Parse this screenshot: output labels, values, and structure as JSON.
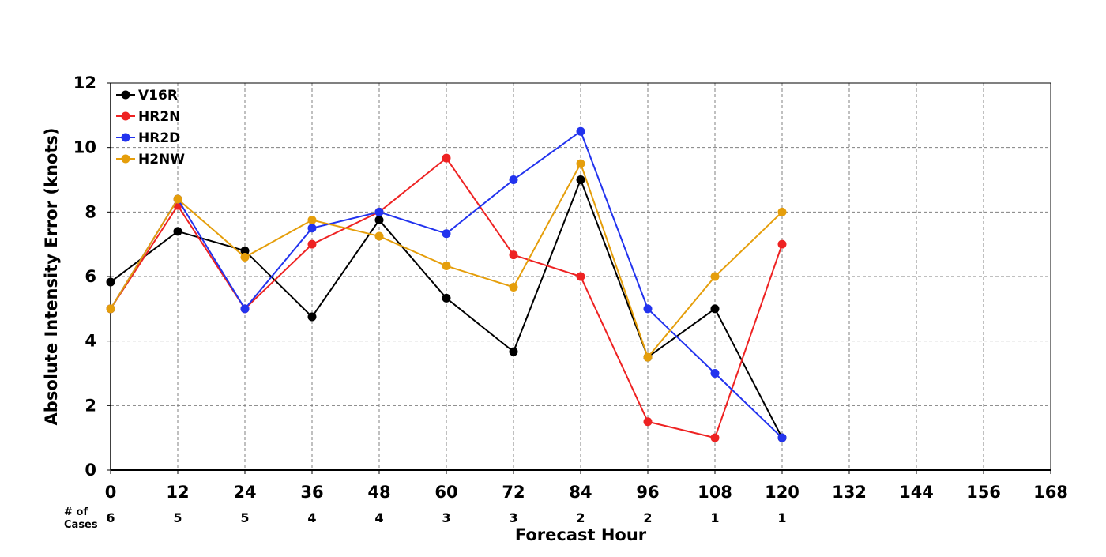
{
  "chart_data": {
    "type": "line",
    "title": "",
    "xlabel": "Forecast Hour",
    "ylabel": "Absolute Intensity Error (knots)",
    "xlim": [
      0,
      168
    ],
    "ylim": [
      0,
      12
    ],
    "x_ticks": [
      "0",
      "12",
      "24",
      "36",
      "48",
      "60",
      "72",
      "84",
      "96",
      "108",
      "120",
      "132",
      "144",
      "156",
      "168"
    ],
    "y_ticks": [
      "0",
      "2",
      "4",
      "6",
      "8",
      "10",
      "12"
    ],
    "grid": true,
    "legend_position": "top-left",
    "x": [
      0,
      12,
      24,
      36,
      48,
      60,
      72,
      84,
      96,
      108,
      120
    ],
    "series": [
      {
        "name": "V16R",
        "color": "#000000",
        "values": [
          5.83,
          7.4,
          6.8,
          4.75,
          7.75,
          5.33,
          3.67,
          9.0,
          3.5,
          5.0,
          1.0
        ]
      },
      {
        "name": "HR2N",
        "color": "#ee2222",
        "values": [
          5.0,
          8.2,
          5.0,
          7.0,
          8.0,
          9.67,
          6.67,
          6.0,
          1.5,
          1.0,
          7.0
        ]
      },
      {
        "name": "HR2D",
        "color": "#2233ee",
        "values": [
          5.0,
          8.4,
          5.0,
          7.5,
          8.0,
          7.33,
          9.0,
          10.5,
          5.0,
          3.0,
          1.0
        ]
      },
      {
        "name": "H2NW",
        "color": "#e59e0b",
        "values": [
          5.0,
          8.4,
          6.6,
          7.75,
          7.25,
          6.33,
          5.67,
          9.5,
          3.5,
          6.0,
          8.0
        ]
      }
    ],
    "cases": {
      "label_line1": "# of",
      "label_line2": "Cases",
      "values": [
        "6",
        "5",
        "5",
        "4",
        "4",
        "3",
        "3",
        "2",
        "2",
        "1",
        "1"
      ]
    }
  }
}
